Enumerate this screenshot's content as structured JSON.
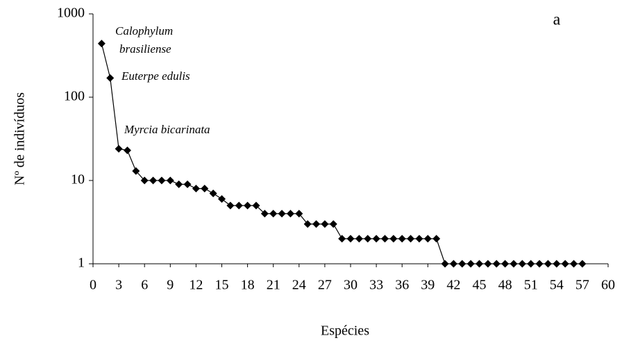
{
  "chart_data": {
    "type": "line",
    "xlabel": "Espécies",
    "ylabel": "Nº de indivíduos",
    "panel": "a",
    "annotations": [
      "Calophylum",
      "brasiliense",
      "Euterpe edulis",
      "Myrcia bicarinata"
    ],
    "x": [
      1,
      2,
      3,
      4,
      5,
      6,
      7,
      8,
      9,
      10,
      11,
      12,
      13,
      14,
      15,
      16,
      17,
      18,
      19,
      20,
      21,
      22,
      23,
      24,
      25,
      26,
      27,
      28,
      29,
      30,
      31,
      32,
      33,
      34,
      35,
      36,
      37,
      38,
      39,
      40,
      41,
      42,
      43,
      44,
      45,
      46,
      47,
      48,
      49,
      50,
      51,
      52,
      53,
      54,
      55,
      56,
      57
    ],
    "values": [
      440,
      170,
      24,
      23,
      13,
      10,
      10,
      10,
      10,
      9,
      9,
      8,
      8,
      7,
      6,
      5,
      5,
      5,
      5,
      4,
      4,
      4,
      4,
      4,
      3,
      3,
      3,
      3,
      2,
      2,
      2,
      2,
      2,
      2,
      2,
      2,
      2,
      2,
      2,
      2,
      1,
      1,
      1,
      1,
      1,
      1,
      1,
      1,
      1,
      1,
      1,
      1,
      1,
      1,
      1,
      1,
      1
    ],
    "color": "#000000",
    "xlim": [
      0,
      60
    ],
    "xticks": [
      0,
      3,
      6,
      9,
      12,
      15,
      18,
      21,
      24,
      27,
      30,
      33,
      36,
      39,
      42,
      45,
      48,
      51,
      54,
      57,
      60
    ],
    "ylim": [
      1,
      1000
    ],
    "yticks": [
      1,
      10,
      100,
      1000
    ],
    "ylog": true,
    "grid": false
  }
}
